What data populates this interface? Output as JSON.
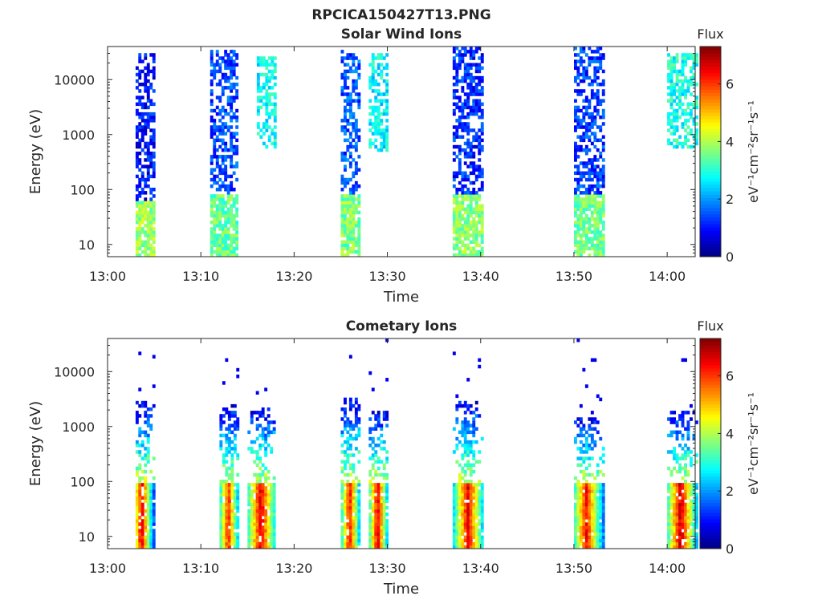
{
  "figure": {
    "title": "RPCICA150427T13.PNG"
  },
  "colors": {
    "axis": "#262626",
    "background": "#ffffff",
    "colormap": "jet"
  },
  "chart_data": [
    {
      "type": "heatmap",
      "title": "Solar Wind Ions",
      "xlabel": "Time",
      "ylabel": "Energy (eV)",
      "yscale": "log",
      "ylim": [
        6,
        40000
      ],
      "xlim_minutes": [
        0,
        63
      ],
      "xticks": [
        "13:00",
        "13:10",
        "13:20",
        "13:30",
        "13:40",
        "13:50",
        "14:00"
      ],
      "yticks": [
        "10",
        "100",
        "1000",
        "10000"
      ],
      "grid": false,
      "colorbar": {
        "title": "Flux",
        "label": "eV⁻¹cm⁻²sr⁻¹s⁻¹",
        "range": [
          0,
          7.3
        ],
        "ticks": [
          "0",
          "2",
          "4",
          "6"
        ]
      },
      "bursts": [
        {
          "start": "13:03",
          "end": "13:05",
          "low_flux": 3.8,
          "low_max_eV": 60,
          "high_flux": 1.0,
          "high_max_eV": 30000
        },
        {
          "start": "13:11",
          "end": "13:14",
          "low_flux": 3.5,
          "low_max_eV": 80,
          "high_flux": 1.4,
          "high_max_eV": 35000
        },
        {
          "start": "13:16",
          "end": "13:18",
          "low_flux": 0,
          "low_max_eV": 0,
          "high_flux": 2.8,
          "high_max_eV": 25000,
          "high_min_eV": 600
        },
        {
          "start": "13:25",
          "end": "13:27",
          "low_flux": 3.6,
          "low_max_eV": 80,
          "high_flux": 1.5,
          "high_max_eV": 35000
        },
        {
          "start": "13:28",
          "end": "13:30",
          "low_flux": 0,
          "low_max_eV": 0,
          "high_flux": 2.7,
          "high_max_eV": 30000,
          "high_min_eV": 500
        },
        {
          "start": "13:37",
          "end": "13:40",
          "low_flux": 3.7,
          "low_max_eV": 80,
          "high_flux": 1.2,
          "high_max_eV": 40000
        },
        {
          "start": "13:50",
          "end": "13:53",
          "low_flux": 3.6,
          "low_max_eV": 80,
          "high_flux": 1.3,
          "high_max_eV": 40000
        },
        {
          "start": "14:00",
          "end": "14:03",
          "low_flux": 0,
          "low_max_eV": 0,
          "high_flux": 2.9,
          "high_max_eV": 30000,
          "high_min_eV": 600
        }
      ]
    },
    {
      "type": "heatmap",
      "title": "Cometary Ions",
      "xlabel": "Time",
      "ylabel": "Energy (eV)",
      "yscale": "log",
      "ylim": [
        6,
        40000
      ],
      "xlim_minutes": [
        0,
        63
      ],
      "xticks": [
        "13:00",
        "13:10",
        "13:20",
        "13:30",
        "13:40",
        "13:50",
        "14:00"
      ],
      "yticks": [
        "10",
        "100",
        "1000",
        "10000"
      ],
      "grid": false,
      "colorbar": {
        "title": "Flux",
        "label": "eV⁻¹cm⁻²sr⁻¹s⁻¹",
        "range": [
          0,
          7.3
        ],
        "ticks": [
          "0",
          "2",
          "4",
          "6"
        ]
      },
      "bursts": [
        {
          "start": "13:03",
          "end": "13:05",
          "peak_time": "13:03.5",
          "peak_flux": 7.0,
          "core_max_eV": 90,
          "tail_max_eV": 2800
        },
        {
          "start": "13:12",
          "end": "13:14",
          "peak_time": "13:12.8",
          "peak_flux": 6.6,
          "core_max_eV": 90,
          "tail_max_eV": 2500
        },
        {
          "start": "13:15",
          "end": "13:18",
          "peak_time": "13:16.3",
          "peak_flux": 7.1,
          "core_max_eV": 90,
          "tail_max_eV": 2200
        },
        {
          "start": "13:25",
          "end": "13:27",
          "peak_time": "13:25.8",
          "peak_flux": 6.8,
          "core_max_eV": 90,
          "tail_max_eV": 3500
        },
        {
          "start": "13:28",
          "end": "13:30",
          "peak_time": "13:28.8",
          "peak_flux": 7.0,
          "core_max_eV": 90,
          "tail_max_eV": 2000
        },
        {
          "start": "13:37",
          "end": "13:40",
          "peak_time": "13:38.5",
          "peak_flux": 7.0,
          "core_max_eV": 90,
          "tail_max_eV": 3000
        },
        {
          "start": "13:50",
          "end": "13:53",
          "peak_time": "13:51.2",
          "peak_flux": 6.7,
          "core_max_eV": 90,
          "tail_max_eV": 1500
        },
        {
          "start": "14:00",
          "end": "14:03",
          "peak_time": "14:01.3",
          "peak_flux": 7.2,
          "core_max_eV": 90,
          "tail_max_eV": 2000
        }
      ]
    }
  ]
}
